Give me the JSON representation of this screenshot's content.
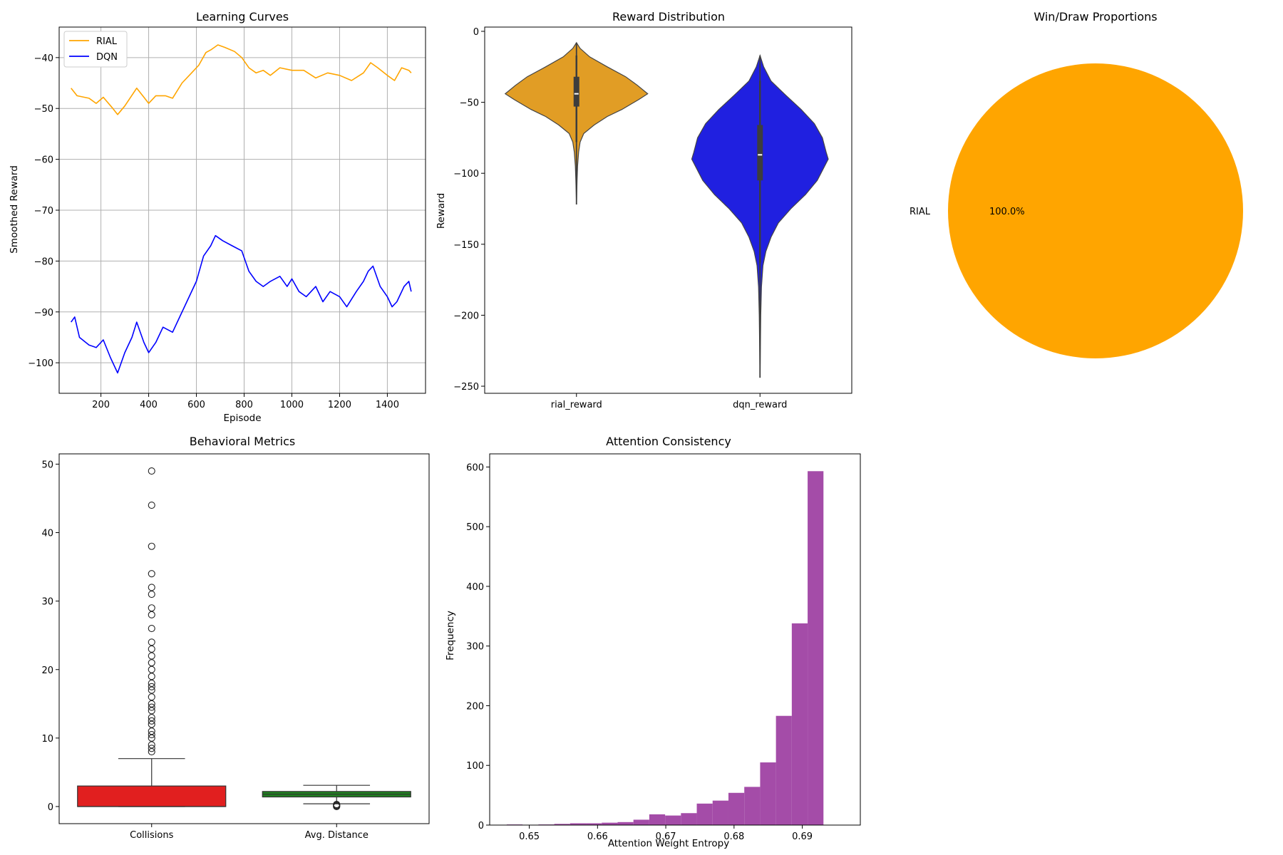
{
  "chart_data": [
    {
      "id": "learning",
      "type": "line",
      "title": "Learning Curves",
      "xlabel": "Episode",
      "ylabel": "Smoothed Reward",
      "xlim": [
        25,
        1560
      ],
      "ylim": [
        -106,
        -34
      ],
      "xticks": [
        200,
        400,
        600,
        800,
        1000,
        1200,
        1400
      ],
      "yticks": [
        -100,
        -90,
        -80,
        -70,
        -60,
        -50,
        -40
      ],
      "grid": true,
      "legend": "top-left",
      "series": [
        {
          "name": "RIAL",
          "color": "#ffa500",
          "points": [
            [
              75,
              -46
            ],
            [
              100,
              -47.5
            ],
            [
              150,
              -48
            ],
            [
              180,
              -49
            ],
            [
              210,
              -47.8
            ],
            [
              250,
              -50
            ],
            [
              270,
              -51.2
            ],
            [
              300,
              -49.5
            ],
            [
              350,
              -46
            ],
            [
              380,
              -47.8
            ],
            [
              400,
              -49
            ],
            [
              430,
              -47.5
            ],
            [
              470,
              -47.5
            ],
            [
              500,
              -48
            ],
            [
              540,
              -45
            ],
            [
              580,
              -43
            ],
            [
              610,
              -41.5
            ],
            [
              640,
              -39
            ],
            [
              660,
              -38.5
            ],
            [
              690,
              -37.5
            ],
            [
              720,
              -38
            ],
            [
              760,
              -38.8
            ],
            [
              790,
              -40
            ],
            [
              820,
              -42
            ],
            [
              850,
              -43
            ],
            [
              880,
              -42.5
            ],
            [
              910,
              -43.5
            ],
            [
              950,
              -42
            ],
            [
              1000,
              -42.5
            ],
            [
              1050,
              -42.5
            ],
            [
              1100,
              -44
            ],
            [
              1150,
              -43
            ],
            [
              1200,
              -43.5
            ],
            [
              1250,
              -44.5
            ],
            [
              1300,
              -43
            ],
            [
              1330,
              -41
            ],
            [
              1360,
              -42
            ],
            [
              1400,
              -43.5
            ],
            [
              1430,
              -44.5
            ],
            [
              1460,
              -42
            ],
            [
              1490,
              -42.5
            ],
            [
              1500,
              -43
            ]
          ]
        },
        {
          "name": "DQN",
          "color": "#0000ff",
          "points": [
            [
              75,
              -92
            ],
            [
              90,
              -91
            ],
            [
              110,
              -95
            ],
            [
              150,
              -96.5
            ],
            [
              180,
              -97
            ],
            [
              210,
              -95.5
            ],
            [
              240,
              -99
            ],
            [
              270,
              -102
            ],
            [
              300,
              -98
            ],
            [
              330,
              -95
            ],
            [
              350,
              -92
            ],
            [
              380,
              -96
            ],
            [
              400,
              -98
            ],
            [
              430,
              -96
            ],
            [
              460,
              -93
            ],
            [
              500,
              -94
            ],
            [
              530,
              -91
            ],
            [
              560,
              -88
            ],
            [
              600,
              -84
            ],
            [
              630,
              -79
            ],
            [
              660,
              -77
            ],
            [
              680,
              -75
            ],
            [
              710,
              -76
            ],
            [
              750,
              -77
            ],
            [
              790,
              -78
            ],
            [
              820,
              -82
            ],
            [
              850,
              -84
            ],
            [
              880,
              -85
            ],
            [
              910,
              -84
            ],
            [
              950,
              -83
            ],
            [
              980,
              -85
            ],
            [
              1000,
              -83.5
            ],
            [
              1030,
              -86
            ],
            [
              1060,
              -87
            ],
            [
              1100,
              -85
            ],
            [
              1130,
              -88
            ],
            [
              1160,
              -86
            ],
            [
              1200,
              -87
            ],
            [
              1230,
              -89
            ],
            [
              1270,
              -86
            ],
            [
              1300,
              -84
            ],
            [
              1320,
              -82
            ],
            [
              1340,
              -81
            ],
            [
              1370,
              -85
            ],
            [
              1400,
              -87
            ],
            [
              1420,
              -89
            ],
            [
              1440,
              -88
            ],
            [
              1470,
              -85
            ],
            [
              1490,
              -84
            ],
            [
              1500,
              -86
            ]
          ]
        }
      ]
    },
    {
      "id": "violin",
      "type": "violin",
      "title": "Reward Distribution",
      "ylabel": "Reward",
      "categories": [
        "rial_reward",
        "dqn_reward"
      ],
      "ylim": [
        -255,
        3
      ],
      "yticks": [
        0,
        -50,
        -100,
        -150,
        -200,
        -250
      ],
      "series": [
        {
          "name": "rial_reward",
          "color": "#e19d25",
          "q1": -53,
          "median": -44,
          "q3": -32,
          "whisker_low": -78,
          "whisker_high": -17,
          "min": -122,
          "max": -8,
          "profile": [
            [
              -8,
              0
            ],
            [
              -12,
              0.05
            ],
            [
              -18,
              0.18
            ],
            [
              -25,
              0.42
            ],
            [
              -32,
              0.67
            ],
            [
              -38,
              0.83
            ],
            [
              -44,
              0.97
            ],
            [
              -48,
              0.85
            ],
            [
              -55,
              0.62
            ],
            [
              -60,
              0.42
            ],
            [
              -66,
              0.24
            ],
            [
              -72,
              0.1
            ],
            [
              -78,
              0.05
            ],
            [
              -85,
              0.03
            ],
            [
              -95,
              0.015
            ],
            [
              -105,
              0.008
            ],
            [
              -122,
              0
            ]
          ]
        },
        {
          "name": "dqn_reward",
          "color": "#2020e0",
          "q1": -105,
          "median": -87,
          "q3": -66,
          "whisker_low": -163,
          "whisker_high": -35,
          "min": -244,
          "max": -17,
          "profile": [
            [
              -17,
              0
            ],
            [
              -25,
              0.05
            ],
            [
              -35,
              0.15
            ],
            [
              -45,
              0.35
            ],
            [
              -55,
              0.56
            ],
            [
              -65,
              0.74
            ],
            [
              -75,
              0.85
            ],
            [
              -85,
              0.9
            ],
            [
              -90,
              0.93
            ],
            [
              -95,
              0.88
            ],
            [
              -105,
              0.78
            ],
            [
              -115,
              0.62
            ],
            [
              -125,
              0.42
            ],
            [
              -135,
              0.25
            ],
            [
              -145,
              0.15
            ],
            [
              -155,
              0.08
            ],
            [
              -165,
              0.04
            ],
            [
              -180,
              0.02
            ],
            [
              -200,
              0.01
            ],
            [
              -244,
              0
            ]
          ]
        }
      ]
    },
    {
      "id": "pie",
      "type": "pie",
      "title": "Win/Draw Proportions",
      "slices": [
        {
          "label": "RIAL",
          "value": 100.0,
          "pct_label": "100.0%",
          "color": "#ffa500"
        }
      ]
    },
    {
      "id": "box",
      "type": "box",
      "title": "Behavioral Metrics",
      "categories": [
        "Collisions",
        "Avg. Distance"
      ],
      "ylim": [
        -2.5,
        51.5
      ],
      "yticks": [
        0,
        10,
        20,
        30,
        40,
        50
      ],
      "series": [
        {
          "name": "Collisions",
          "color": "#e11f1f",
          "q1": 0,
          "median": 0,
          "q3": 3,
          "whisker_low": 0,
          "whisker_high": 7,
          "outliers": [
            8,
            8.5,
            9,
            10,
            10.5,
            11,
            12,
            12.5,
            13,
            14,
            14.5,
            15,
            16,
            17,
            17.5,
            18,
            19,
            20,
            21,
            22,
            23,
            24,
            26,
            28,
            29,
            31,
            32,
            34,
            38,
            44,
            49
          ]
        },
        {
          "name": "Avg. Distance",
          "color": "#1f7f1f",
          "q1": 1.4,
          "median": 1.8,
          "q3": 2.2,
          "whisker_low": 0.4,
          "whisker_high": 3.1,
          "outliers": [
            0.0,
            0.1,
            0.2,
            0.3
          ]
        }
      ]
    },
    {
      "id": "hist",
      "type": "histogram",
      "title": "Attention Consistency",
      "xlabel": "Attention Weight Entropy",
      "ylabel": "Frequency",
      "xlim": [
        0.6442,
        0.6985
      ],
      "ylim": [
        0,
        622
      ],
      "xticks": [
        0.65,
        0.66,
        0.67,
        0.68,
        0.69
      ],
      "yticks": [
        0,
        100,
        200,
        300,
        400,
        500,
        600
      ],
      "color": "#a44ca8",
      "bin_start": 0.6467,
      "bin_width": 0.00232,
      "counts": [
        1,
        0,
        1,
        2,
        3,
        3,
        4,
        5,
        9,
        18,
        16,
        20,
        36,
        41,
        54,
        64,
        105,
        183,
        338,
        593
      ]
    }
  ]
}
